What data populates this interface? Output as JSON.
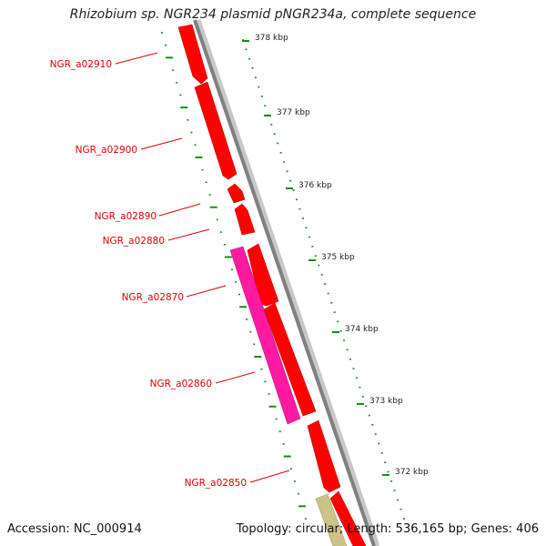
{
  "title": "Rhizobium sp. NGR234 plasmid pNGR234a, complete sequence",
  "accession_text": "Accession: NC_000914",
  "summary_text": "Topology: circular; Length: 536,165 bp; Genes: 406",
  "colors": {
    "gene_red": "#ff0000",
    "gene_magenta": "#ff1aa0",
    "gene_khaki": "#cdc38a",
    "backbone": "#808080",
    "tick_green": "#1a8a1a",
    "label_red": "#e00000"
  },
  "ruler": {
    "ticks": [
      {
        "label": "378 kbp"
      },
      {
        "label": "377 kbp"
      },
      {
        "label": "376 kbp"
      },
      {
        "label": "375 kbp"
      },
      {
        "label": "374 kbp"
      },
      {
        "label": "373 kbp"
      },
      {
        "label": "372 kbp"
      }
    ]
  },
  "gene_labels": [
    {
      "name": "NGR_a02910"
    },
    {
      "name": "NGR_a02900"
    },
    {
      "name": "NGR_a02890"
    },
    {
      "name": "NGR_a02880"
    },
    {
      "name": "NGR_a02870"
    },
    {
      "name": "NGR_a02860"
    },
    {
      "name": "NGR_a02850"
    }
  ]
}
